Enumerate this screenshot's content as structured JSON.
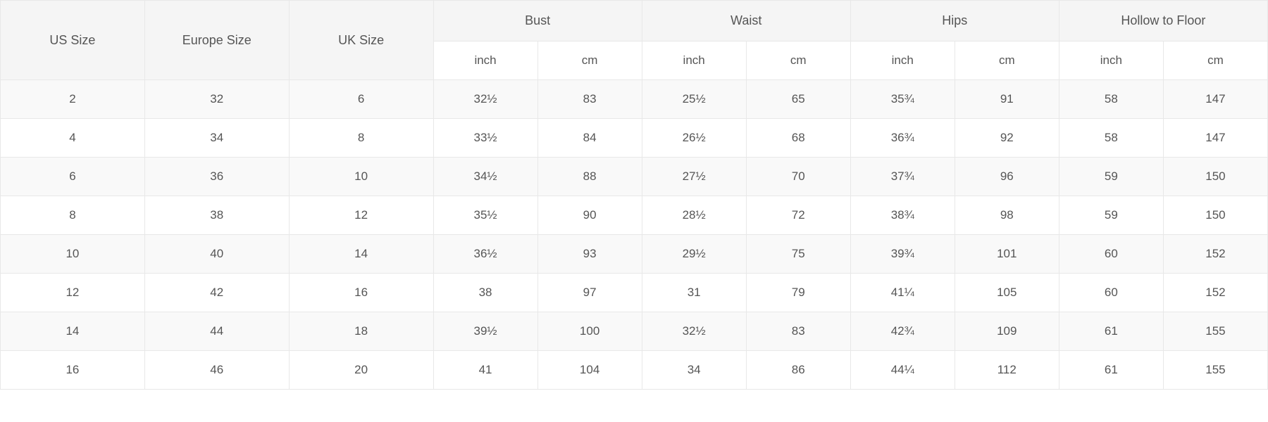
{
  "size_chart": {
    "type": "table",
    "background_color": "#ffffff",
    "header_bg": "#f5f5f5",
    "row_alt_bg": "#f9f9f9",
    "border_color": "#e8e8e8",
    "text_color": "#555555",
    "header_fontsize": 18,
    "body_fontsize": 17,
    "size_columns": [
      "US Size",
      "Europe Size",
      "UK Size"
    ],
    "measure_groups": [
      "Bust",
      "Waist",
      "Hips",
      "Hollow to Floor"
    ],
    "units": [
      "inch",
      "cm"
    ],
    "rows": [
      {
        "sizes": [
          "2",
          "32",
          "6"
        ],
        "measures": [
          [
            "32½",
            "83"
          ],
          [
            "25½",
            "65"
          ],
          [
            "35¾",
            "91"
          ],
          [
            "58",
            "147"
          ]
        ]
      },
      {
        "sizes": [
          "4",
          "34",
          "8"
        ],
        "measures": [
          [
            "33½",
            "84"
          ],
          [
            "26½",
            "68"
          ],
          [
            "36¾",
            "92"
          ],
          [
            "58",
            "147"
          ]
        ]
      },
      {
        "sizes": [
          "6",
          "36",
          "10"
        ],
        "measures": [
          [
            "34½",
            "88"
          ],
          [
            "27½",
            "70"
          ],
          [
            "37¾",
            "96"
          ],
          [
            "59",
            "150"
          ]
        ]
      },
      {
        "sizes": [
          "8",
          "38",
          "12"
        ],
        "measures": [
          [
            "35½",
            "90"
          ],
          [
            "28½",
            "72"
          ],
          [
            "38¾",
            "98"
          ],
          [
            "59",
            "150"
          ]
        ]
      },
      {
        "sizes": [
          "10",
          "40",
          "14"
        ],
        "measures": [
          [
            "36½",
            "93"
          ],
          [
            "29½",
            "75"
          ],
          [
            "39¾",
            "101"
          ],
          [
            "60",
            "152"
          ]
        ]
      },
      {
        "sizes": [
          "12",
          "42",
          "16"
        ],
        "measures": [
          [
            "38",
            "97"
          ],
          [
            "31",
            "79"
          ],
          [
            "41¼",
            "105"
          ],
          [
            "60",
            "152"
          ]
        ]
      },
      {
        "sizes": [
          "14",
          "44",
          "18"
        ],
        "measures": [
          [
            "39½",
            "100"
          ],
          [
            "32½",
            "83"
          ],
          [
            "42¾",
            "109"
          ],
          [
            "61",
            "155"
          ]
        ]
      },
      {
        "sizes": [
          "16",
          "46",
          "20"
        ],
        "measures": [
          [
            "41",
            "104"
          ],
          [
            "34",
            "86"
          ],
          [
            "44¼",
            "112"
          ],
          [
            "61",
            "155"
          ]
        ]
      }
    ]
  }
}
